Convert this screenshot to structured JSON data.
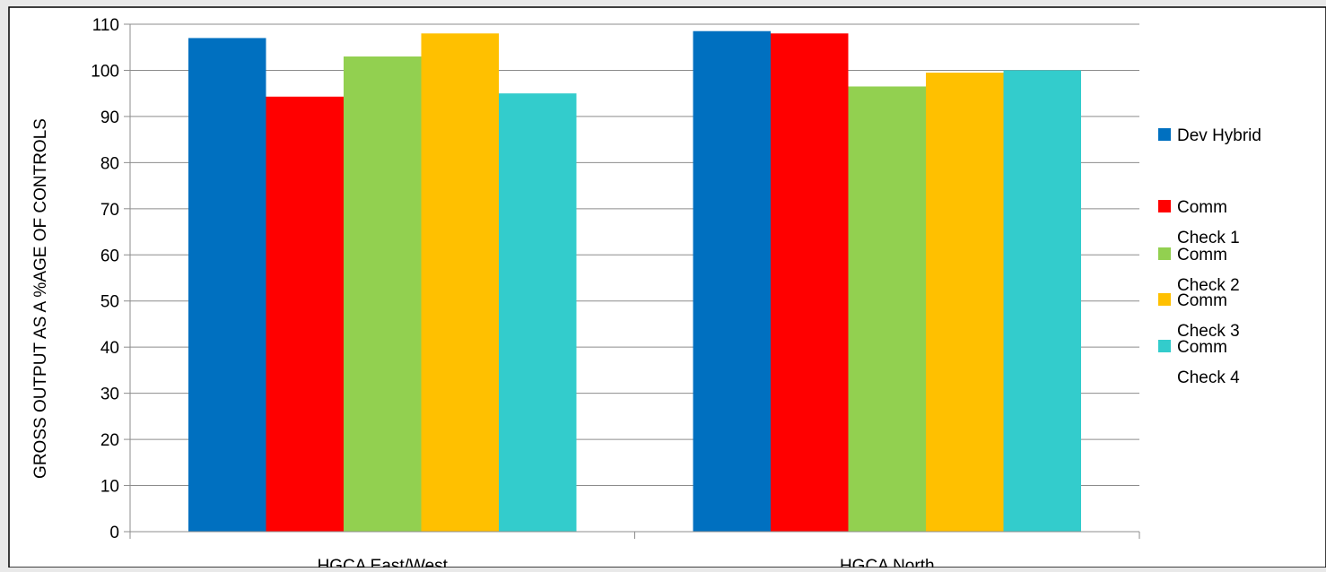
{
  "chart_data": {
    "type": "bar",
    "title": "",
    "xlabel": "",
    "ylabel": "GROSS OUTPUT AS A %AGE OF CONTROLS",
    "ylim": [
      0,
      110
    ],
    "yticks": [
      0,
      10,
      20,
      30,
      40,
      50,
      60,
      70,
      80,
      90,
      100,
      110
    ],
    "grid": true,
    "legend_position": "right",
    "categories": [
      "HGCA East/West",
      "HGCA North"
    ],
    "series": [
      {
        "name": "Dev Hybrid",
        "legend_lines": [
          "Dev Hybrid"
        ],
        "color": "#0070C0",
        "values": [
          107,
          108.5
        ]
      },
      {
        "name": "Comm Check 1",
        "legend_lines": [
          "Comm",
          "Check 1"
        ],
        "color": "#FF0000",
        "values": [
          94.3,
          108
        ]
      },
      {
        "name": "Comm Check 2",
        "legend_lines": [
          "Comm",
          "Check 2"
        ],
        "color": "#92D050",
        "values": [
          103,
          96.5
        ]
      },
      {
        "name": "Comm Check 3",
        "legend_lines": [
          "Comm",
          "Check 3"
        ],
        "color": "#FFC000",
        "values": [
          108,
          99.5
        ]
      },
      {
        "name": "Comm Check 4",
        "legend_lines": [
          "Comm",
          "Check 4"
        ],
        "color": "#33CCCC",
        "values": [
          95,
          100
        ]
      }
    ]
  }
}
